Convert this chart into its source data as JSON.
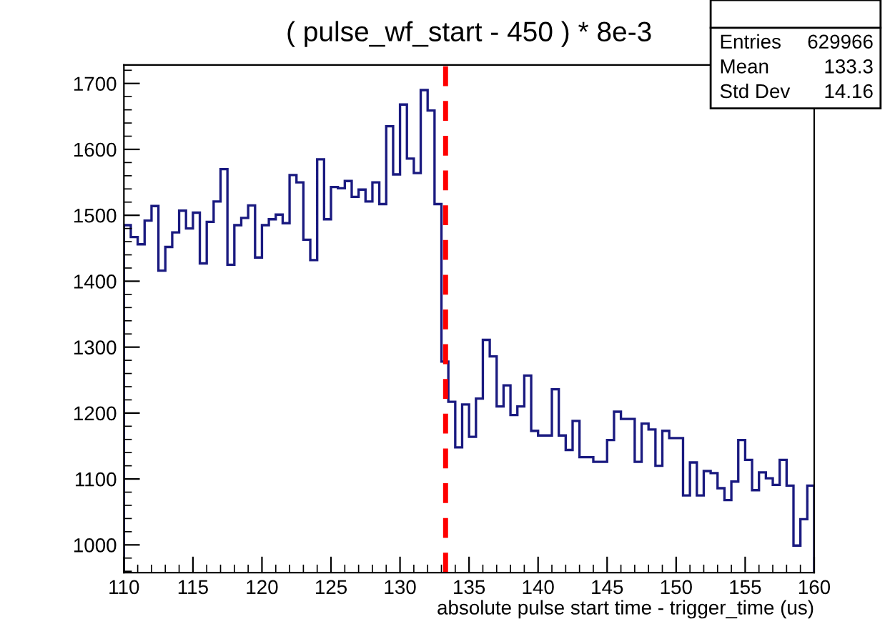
{
  "chart_data": {
    "type": "histogram",
    "title": "( pulse_wf_start - 450 ) * 8e-3",
    "xlabel": "absolute pulse start time - trigger_time (us)",
    "bins": [
      110,
      110.5,
      111,
      111.5,
      112,
      112.5,
      113,
      113.5,
      114,
      114.5,
      115,
      115.5,
      116,
      116.5,
      117,
      117.5,
      118,
      118.5,
      119,
      119.5,
      120,
      120.5,
      121,
      121.5,
      122,
      122.5,
      123,
      123.5,
      124,
      124.5,
      125,
      125.5,
      126,
      126.5,
      127,
      127.5,
      128,
      128.5,
      129,
      129.5,
      130,
      130.5,
      131,
      131.5,
      132,
      132.5,
      133,
      133.5,
      134,
      134.5,
      135,
      135.5,
      136,
      136.5,
      137,
      137.5,
      138,
      138.5,
      139,
      139.5,
      140,
      140.5,
      141,
      141.5,
      142,
      142.5,
      143,
      143.5,
      144,
      144.5,
      145,
      145.5,
      146,
      146.5,
      147,
      147.5,
      148,
      148.5,
      149,
      149.5,
      150,
      150.5,
      151,
      151.5,
      152,
      152.5,
      153,
      153.5,
      154,
      154.5,
      155,
      155.5,
      156,
      156.5,
      157,
      157.5,
      158,
      158.5,
      159,
      159.5,
      160
    ],
    "values": [
      1485,
      1467,
      1456,
      1492,
      1514,
      1416,
      1452,
      1474,
      1507,
      1480,
      1504,
      1427,
      1490,
      1521,
      1570,
      1425,
      1485,
      1496,
      1515,
      1436,
      1485,
      1494,
      1501,
      1488,
      1561,
      1550,
      1463,
      1432,
      1585,
      1494,
      1543,
      1541,
      1552,
      1528,
      1539,
      1521,
      1550,
      1517,
      1635,
      1562,
      1668,
      1586,
      1564,
      1690,
      1659,
      1517,
      1278,
      1217,
      1148,
      1213,
      1164,
      1222,
      1311,
      1286,
      1210,
      1242,
      1197,
      1210,
      1257,
      1173,
      1166,
      1166,
      1236,
      1166,
      1144,
      1188,
      1133,
      1133,
      1126,
      1126,
      1159,
      1202,
      1191,
      1191,
      1126,
      1184,
      1175,
      1120,
      1173,
      1162,
      1162,
      1075,
      1125,
      1075,
      1112,
      1109,
      1086,
      1068,
      1096,
      1159,
      1129,
      1083,
      1110,
      1101,
      1091,
      1129,
      1090,
      999,
      1039,
      1090
    ],
    "color": "#1a1a80",
    "xlim": [
      110,
      160
    ],
    "xticks": [
      110,
      115,
      120,
      125,
      130,
      135,
      140,
      145,
      150,
      155,
      160
    ],
    "ylim": [
      958,
      1728
    ],
    "yticks": [
      1000,
      1100,
      1200,
      1300,
      1400,
      1500,
      1600,
      1700
    ],
    "ref_lines": [
      {
        "axis": "x",
        "value": 133.3,
        "color": "#ff0000",
        "line_style": "dashed"
      }
    ],
    "annotations": [
      "Entries",
      "629966",
      "Mean",
      "133.3",
      "Std Dev",
      "14.16"
    ],
    "grid": false
  }
}
